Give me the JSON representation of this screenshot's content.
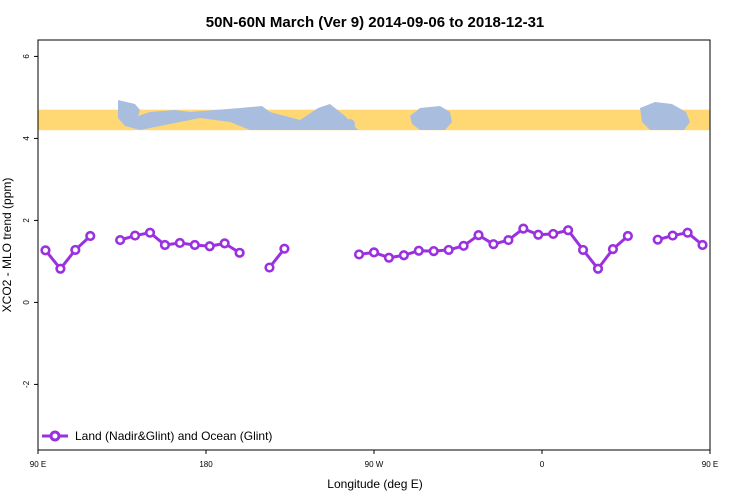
{
  "chart_data": {
    "type": "line",
    "title": "50N-60N March (Ver 9)   2014-09-06 to 2018-12-31",
    "xlabel": "Longitude (deg E)",
    "ylabel": "XCO2 - MLO trend (ppm)",
    "xlim": [
      90,
      450
    ],
    "ylim": [
      -3.6,
      6.4
    ],
    "x_ticks": [
      {
        "value": 90,
        "label": "90 E"
      },
      {
        "value": 180,
        "label": "180"
      },
      {
        "value": 270,
        "label": "90 W"
      },
      {
        "value": 360,
        "label": "0"
      },
      {
        "value": 450,
        "label": "90 E"
      },
      {
        "value": 540,
        "label": "180"
      }
    ],
    "y_ticks": [
      {
        "value": -2,
        "label": "-2"
      },
      {
        "value": 0,
        "label": "0"
      },
      {
        "value": 2,
        "label": "2"
      },
      {
        "value": 4,
        "label": "4"
      },
      {
        "value": 6,
        "label": "6"
      }
    ],
    "map_strip": {
      "ymin": 4.2,
      "ymax": 4.7,
      "ocean_color": "#a9bedf",
      "land_color": "#ffd873"
    },
    "series": [
      {
        "name": "Land (Nadir&Glint) and Ocean (Glint)",
        "color": "#9b30e0",
        "segments": [
          [
            [
              94,
              1.27
            ],
            [
              102,
              0.82
            ],
            [
              110,
              1.28
            ],
            [
              118,
              1.62
            ]
          ],
          [
            [
              134,
              1.52
            ],
            [
              142,
              1.63
            ],
            [
              150,
              1.7
            ],
            [
              158,
              1.4
            ],
            [
              166,
              1.45
            ],
            [
              174,
              1.4
            ],
            [
              182,
              1.37
            ],
            [
              190,
              1.44
            ],
            [
              198,
              1.21
            ]
          ],
          [
            [
              214,
              0.85
            ],
            [
              222,
              1.31
            ]
          ],
          [
            [
              262,
              1.17
            ],
            [
              270,
              1.22
            ],
            [
              278,
              1.09
            ],
            [
              286,
              1.15
            ],
            [
              294,
              1.26
            ],
            [
              302,
              1.25
            ],
            [
              310,
              1.28
            ],
            [
              318,
              1.38
            ],
            [
              326,
              1.64
            ],
            [
              334,
              1.42
            ],
            [
              342,
              1.52
            ],
            [
              350,
              1.8
            ],
            [
              358,
              1.65
            ],
            [
              366,
              1.67
            ],
            [
              374,
              1.76
            ],
            [
              382,
              1.28
            ],
            [
              390,
              0.82
            ],
            [
              398,
              1.3
            ],
            [
              406,
              1.62
            ]
          ],
          [
            [
              422,
              1.53
            ],
            [
              430,
              1.63
            ],
            [
              438,
              1.7
            ],
            [
              446,
              1.4
            ]
          ]
        ]
      }
    ],
    "legend": {
      "position": "bottom-left"
    },
    "grid": false
  }
}
